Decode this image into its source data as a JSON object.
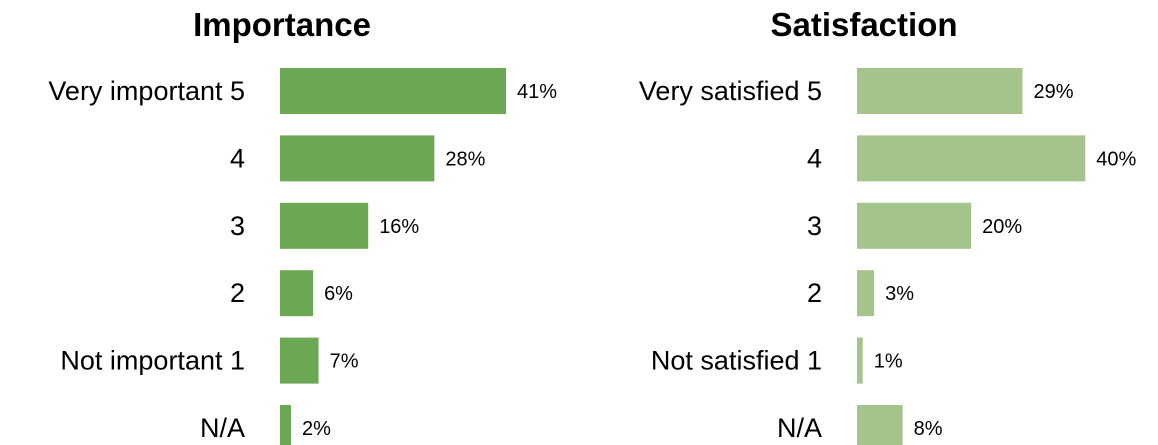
{
  "chart_data": [
    {
      "type": "bar",
      "orientation": "horizontal",
      "title": "Importance",
      "categories": [
        "Very important 5",
        "4",
        "3",
        "2",
        "Not important 1",
        "N/A"
      ],
      "values": [
        41,
        28,
        16,
        6,
        7,
        2
      ],
      "value_labels": [
        "41%",
        "28%",
        "16%",
        "6%",
        "7%",
        "2%"
      ],
      "unit": "%",
      "color": "#6ca754",
      "xlim": [
        0,
        41
      ],
      "grid": false,
      "legend": "none"
    },
    {
      "type": "bar",
      "orientation": "horizontal",
      "title": "Satisfaction",
      "categories": [
        "Very satisfied 5",
        "4",
        "3",
        "2",
        "Not satisfied 1",
        "N/A"
      ],
      "values": [
        29,
        40,
        20,
        3,
        1,
        8
      ],
      "value_labels": [
        "29%",
        "40%",
        "20%",
        "3%",
        "1%",
        "8%"
      ],
      "unit": "%",
      "color": "#a4c48c",
      "xlim": [
        0,
        41
      ],
      "grid": false,
      "legend": "none"
    }
  ]
}
